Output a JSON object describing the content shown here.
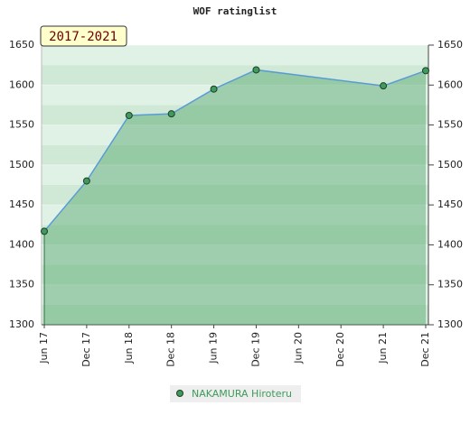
{
  "chart_data": {
    "type": "line",
    "title": "WOF ratinglist",
    "annotation": "2017-2021",
    "categories": [
      "Jun 17",
      "Dec 17",
      "Jun 18",
      "Dec 18",
      "Jun 19",
      "Dec 19",
      "Jun 20",
      "Dec 20",
      "Jun 21",
      "Dec 21"
    ],
    "x": [
      "Jun 17",
      "Dec 17",
      "Jun 18",
      "Dec 18",
      "Jun 19",
      "Dec 19",
      "Jun 21",
      "Dec 21"
    ],
    "series": [
      {
        "name": "NAKAMURA Hiroteru",
        "color": "#3f9a5c",
        "values": [
          1417,
          1480,
          1562,
          1564,
          1595,
          1619,
          1599,
          1618
        ]
      }
    ],
    "ylim": [
      1300,
      1650
    ],
    "yticks": [
      1300,
      1350,
      1400,
      1450,
      1500,
      1550,
      1600,
      1650
    ],
    "grid": true
  }
}
